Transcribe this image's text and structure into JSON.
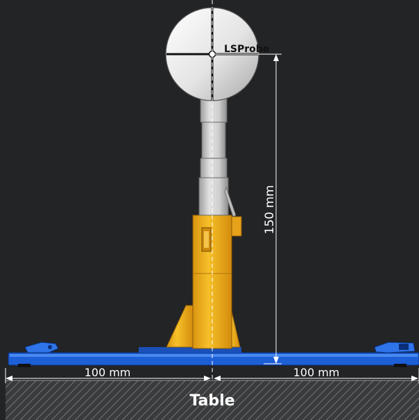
{
  "probe": {
    "brand": "LSProbe",
    "height_label": "150 mm"
  },
  "base": {
    "left_label": "100 mm",
    "right_label": "100 mm"
  },
  "table": {
    "label": "Table"
  },
  "colors": {
    "background": "#232426",
    "sphere": "#e9e9e9",
    "stem": "#c9c9c9",
    "holder": "#f2b21c",
    "plate": "#1d5fd6",
    "table_hatch": "#8d8d8d",
    "dimension_line": "#ffffff"
  }
}
